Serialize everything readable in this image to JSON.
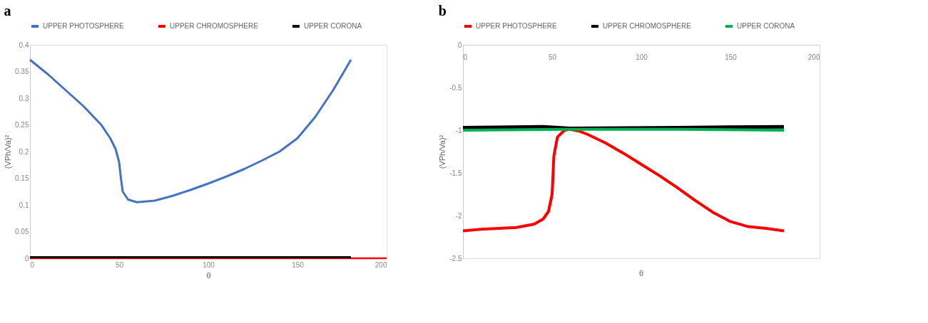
{
  "chart_data": [
    {
      "type": "line",
      "title": "a",
      "xlabel": "θ",
      "ylabel": "(VPh/Va)²",
      "xlim": [
        0,
        200
      ],
      "xticks": [
        0,
        50,
        100,
        150,
        200
      ],
      "ylim": [
        0,
        0.4
      ],
      "yticks": [
        0,
        0.05,
        0.1,
        0.15,
        0.2,
        0.25,
        0.3,
        0.35,
        0.4
      ],
      "grid": false,
      "legend": "top",
      "series": [
        {
          "name": "UPPER PHOTOSPHERE",
          "color": "#4472c4",
          "x": [
            0,
            10,
            20,
            30,
            40,
            45,
            48,
            50,
            51,
            52,
            55,
            60,
            70,
            80,
            90,
            100,
            110,
            120,
            130,
            140,
            150,
            160,
            170,
            180
          ],
          "values": [
            0.372,
            0.345,
            0.315,
            0.285,
            0.25,
            0.225,
            0.205,
            0.18,
            0.15,
            0.125,
            0.11,
            0.105,
            0.108,
            0.117,
            0.128,
            0.14,
            0.153,
            0.167,
            0.183,
            0.2,
            0.225,
            0.265,
            0.315,
            0.372
          ]
        },
        {
          "name": "UPPER CHROMOSPHERE",
          "color": "#ff0000",
          "x": [
            0,
            200
          ],
          "values": [
            0,
            0
          ]
        },
        {
          "name": "UPPER CORONA",
          "color": "#111111",
          "x": [
            0,
            180
          ],
          "values": [
            0.002,
            0.002
          ]
        }
      ]
    },
    {
      "type": "line",
      "title": "b",
      "xlabel": "θ",
      "ylabel": "(VPh/Va)²",
      "xlim": [
        0,
        200
      ],
      "xticks": [
        0,
        50,
        100,
        150,
        200
      ],
      "ylim": [
        -2.5,
        0
      ],
      "yticks": [
        -2.5,
        -2,
        -1.5,
        -1,
        -0.5,
        0
      ],
      "grid": false,
      "legend": "top",
      "series": [
        {
          "name": "UPPER PHOTOSPHERE",
          "color": "#ff0000",
          "x": [
            0,
            10,
            20,
            30,
            40,
            45,
            48,
            50,
            51,
            53,
            57,
            60,
            65,
            70,
            80,
            90,
            100,
            110,
            120,
            130,
            140,
            150,
            160,
            170,
            180
          ],
          "values": [
            -2.18,
            -2.16,
            -2.15,
            -2.14,
            -2.1,
            -2.04,
            -1.95,
            -1.75,
            -1.3,
            -1.08,
            -1.0,
            -0.99,
            -1.01,
            -1.05,
            -1.15,
            -1.27,
            -1.4,
            -1.53,
            -1.67,
            -1.82,
            -1.96,
            -2.07,
            -2.13,
            -2.15,
            -2.18
          ]
        },
        {
          "name": "UPPER CHROMOSPHERE",
          "color": "#000000",
          "x": [
            0,
            45,
            60,
            120,
            180
          ],
          "values": [
            -0.97,
            -0.96,
            -0.98,
            -0.97,
            -0.96
          ]
        },
        {
          "name": "UPPER CORONA",
          "color": "#00b050",
          "x": [
            0,
            60,
            120,
            180
          ],
          "values": [
            -1.0,
            -0.99,
            -0.99,
            -1.0
          ]
        }
      ]
    }
  ]
}
